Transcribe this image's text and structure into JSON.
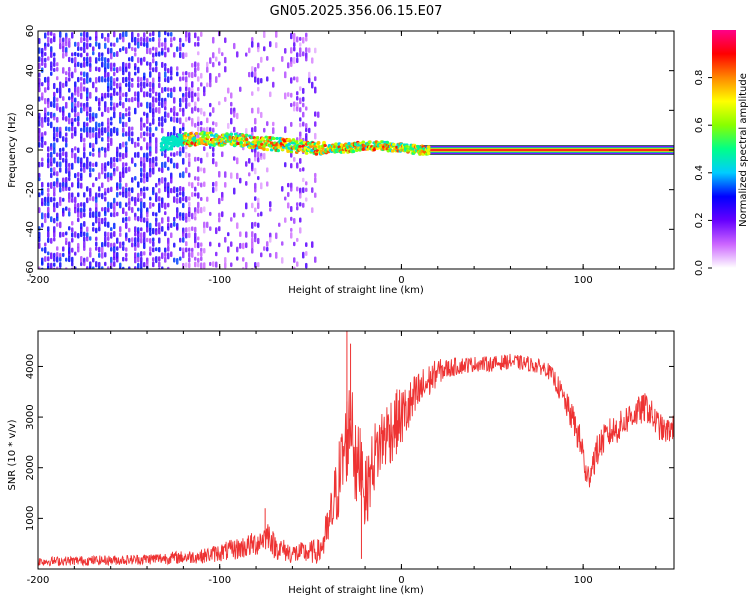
{
  "title": "GN05.2025.356.06.15.E07",
  "chart_data": [
    {
      "type": "heatmap",
      "title": "GN05.2025.356.06.15.E07",
      "xlabel": "Height of straight line (km)",
      "ylabel": "Frequency (Hz)",
      "xlim": [
        -200,
        150
      ],
      "ylim": [
        -60,
        60
      ],
      "xticks": [
        -200,
        -100,
        0,
        100
      ],
      "xtick_labels": [
        "-200",
        "-100",
        "0",
        "100"
      ],
      "yticks": [
        60,
        40,
        20,
        0,
        -20,
        -40,
        -60
      ],
      "ytick_labels": [
        "60",
        "40",
        "20",
        "0",
        "-20",
        "-40",
        "-60"
      ],
      "ridge": {
        "x": [
          -130,
          -120,
          -110,
          -100,
          -90,
          -80,
          -70,
          -60,
          -50,
          -40,
          -30,
          -20,
          -10,
          0,
          10,
          20,
          50,
          100,
          150
        ],
        "frequency": [
          3,
          5,
          6,
          5,
          5,
          4,
          3,
          2,
          1,
          1,
          1,
          2,
          2,
          1,
          0,
          0,
          0,
          0,
          0
        ]
      },
      "noise_region": {
        "x": [
          -200,
          -50
        ]
      },
      "colorbar": {
        "label": "Normalized spectral amplitude",
        "range": [
          0,
          1
        ],
        "ticks": [
          0.0,
          0.2,
          0.4,
          0.6,
          0.8
        ],
        "tick_labels": [
          "0.0",
          "0.2",
          "0.4",
          "0.6",
          "0.8"
        ],
        "colors": [
          "#ffffff",
          "#cc66ff",
          "#6600ff",
          "#0000ff",
          "#00ccff",
          "#00ff88",
          "#88ff00",
          "#ffff00",
          "#ff8800",
          "#ff0000",
          "#ff0088"
        ]
      }
    },
    {
      "type": "line",
      "xlabel": "Height of straight line (km)",
      "ylabel": "SNR (10 * v/v)",
      "xlim": [
        -200,
        150
      ],
      "ylim": [
        0,
        4700
      ],
      "xticks": [
        -200,
        -100,
        0,
        100
      ],
      "xtick_labels": [
        "-200",
        "-100",
        "0",
        "100"
      ],
      "yticks": [
        1000,
        2000,
        3000,
        4000
      ],
      "ytick_labels": [
        "1000",
        "2000",
        "3000",
        "4000"
      ],
      "color": "#ee3333",
      "envelope": {
        "x": [
          -200,
          -150,
          -110,
          -90,
          -80,
          -73,
          -70,
          -60,
          -45,
          -40,
          -36,
          -33,
          -30,
          -27,
          -25,
          -22,
          -20,
          -15,
          -10,
          -5,
          0,
          5,
          10,
          15,
          20,
          25,
          30,
          40,
          50,
          60,
          70,
          80,
          85,
          90,
          95,
          100,
          102,
          105,
          110,
          115,
          120,
          125,
          130,
          135,
          140,
          145,
          150
        ],
        "mean": [
          150,
          180,
          250,
          400,
          500,
          700,
          450,
          300,
          350,
          800,
          1500,
          2000,
          2600,
          3100,
          1800,
          2300,
          1400,
          2200,
          2600,
          2800,
          3000,
          3200,
          3500,
          3700,
          3900,
          3950,
          4000,
          4050,
          4050,
          4100,
          4050,
          3950,
          3700,
          3300,
          2900,
          2300,
          1700,
          2100,
          2500,
          2700,
          2800,
          3000,
          3100,
          3200,
          2900,
          2700,
          2800
        ],
        "amplitude": [
          90,
          100,
          140,
          220,
          250,
          300,
          250,
          200,
          250,
          500,
          700,
          900,
          900,
          1000,
          900,
          800,
          700,
          700,
          700,
          700,
          600,
          550,
          450,
          350,
          250,
          200,
          180,
          150,
          150,
          150,
          150,
          150,
          200,
          250,
          300,
          350,
          300,
          350,
          300,
          300,
          300,
          300,
          300,
          300,
          300,
          250,
          250
        ]
      },
      "spikes": [
        {
          "x": -75,
          "y": 1200
        },
        {
          "x": -30,
          "y": 4700
        },
        {
          "x": -28,
          "y": 4450
        },
        {
          "x": -22,
          "y": 200
        }
      ]
    }
  ]
}
